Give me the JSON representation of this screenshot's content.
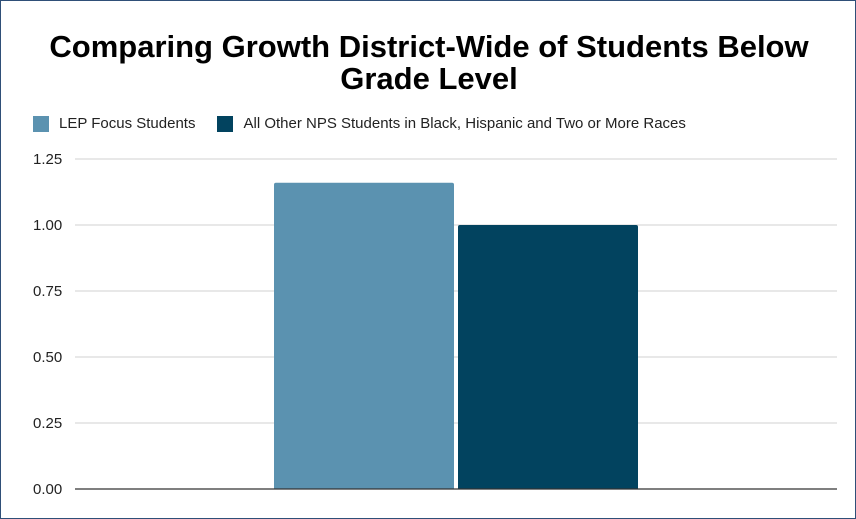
{
  "colors": {
    "series_1": "#5b92b0",
    "series_2": "#02435f",
    "grid": "#d0d0d0",
    "axis": "#333333"
  },
  "chart_data": {
    "type": "bar",
    "title": "Comparing Growth District-Wide of Students Below Grade Level",
    "categories": [
      ""
    ],
    "series": [
      {
        "name": "LEP Focus Students",
        "values": [
          1.16
        ]
      },
      {
        "name": "All Other NPS Students in Black, Hispanic and Two or More Races",
        "values": [
          1.0
        ]
      }
    ],
    "ylim": [
      0,
      1.25
    ],
    "yticks": [
      "0.00",
      "0.25",
      "0.50",
      "0.75",
      "1.00",
      "1.25"
    ],
    "grid": true,
    "legend_position": "top-left"
  }
}
